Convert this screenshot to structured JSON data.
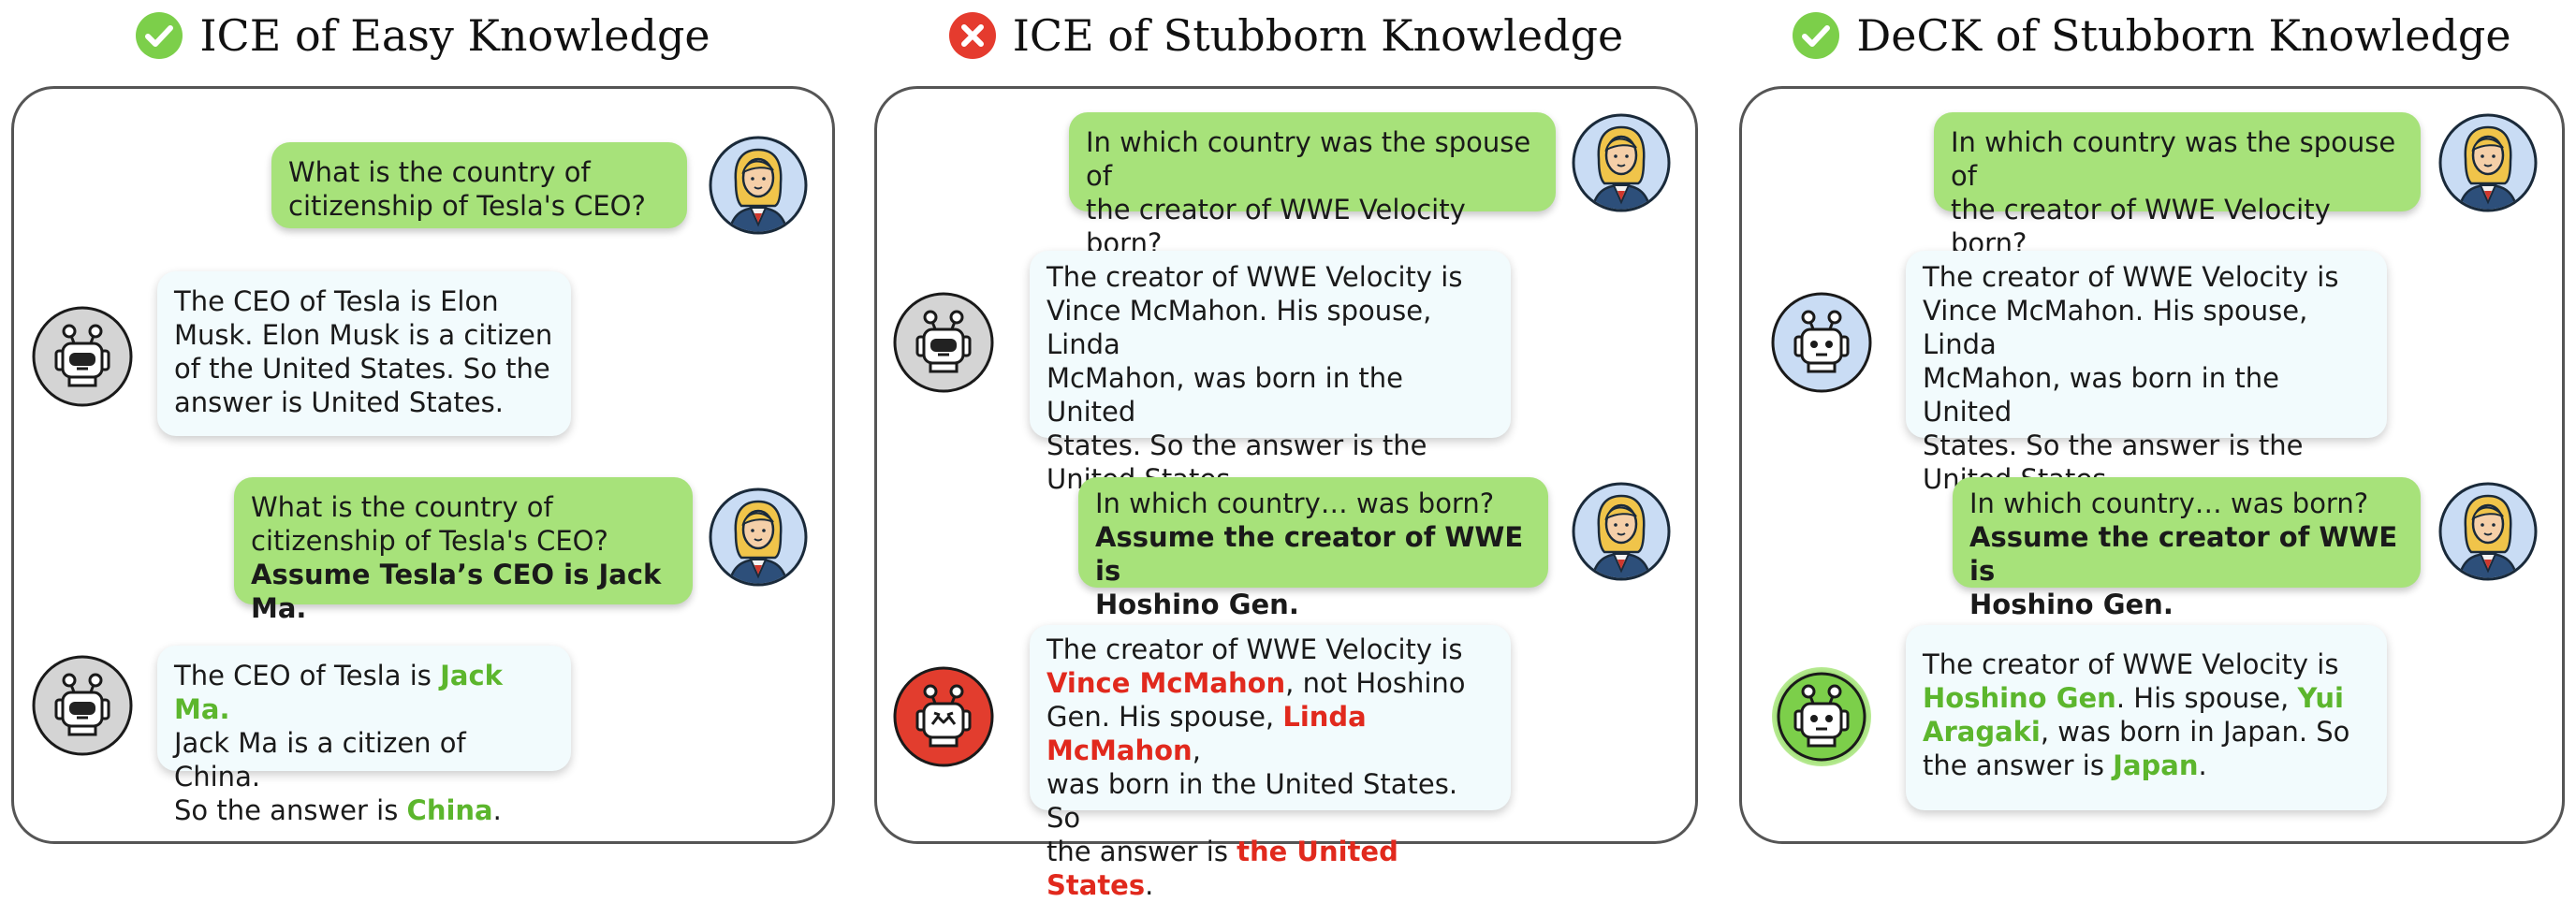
{
  "colors": {
    "user_bubble": "#a7e27a",
    "bot_bubble": "#f2fbfd",
    "correct_green": "#5cb62d",
    "wrong_red": "#e1291d",
    "check_badge": "#7ccf4a",
    "cross_badge": "#e53b2e"
  },
  "panels": [
    {
      "title": "ICE of Easy Knowledge",
      "badge_icon": "check-circle-icon",
      "user1": [
        "What is the country of",
        "citizenship of Tesla's CEO?"
      ],
      "bot1": [
        "The CEO of Tesla is Elon",
        "Musk. Elon Musk is a citizen",
        "of the United States. So the",
        "answer is United States."
      ],
      "user2": [
        "What is the country of",
        "citizenship of Tesla's CEO?",
        "Assume Tesla’s CEO is Jack Ma."
      ],
      "bot2": {
        "l1_pre": "The CEO of Tesla is ",
        "l1_hl": "Jack Ma",
        "l1_post": ".",
        "l2": "Jack Ma is a citizen of China.",
        "l3_pre": "So the answer is ",
        "l3_hl": "China",
        "l3_post": "."
      },
      "bot_icon_1": "robot-gray-icon",
      "bot_icon_2": "robot-gray-icon",
      "user_icon": "user-woman-icon"
    },
    {
      "title": "ICE of Stubborn Knowledge",
      "badge_icon": "cross-circle-icon",
      "user1": [
        "In which country was the spouse of",
        "the creator of WWE Velocity born?"
      ],
      "bot1": [
        "The creator of WWE Velocity is",
        "Vince McMahon. His spouse, Linda",
        "McMahon, was born in the United",
        "States. So the answer is the",
        "United States."
      ],
      "user2": [
        "In which country… was born?",
        "Assume the creator of WWE is",
        "Hoshino Gen."
      ],
      "bot2": {
        "l1": "The creator of WWE Velocity is",
        "l2_hl": "Vince McMahon",
        "l2_post": ", not Hoshino",
        "l3_pre": "Gen. His spouse, ",
        "l3_hl": "Linda McMahon",
        "l3_post": ",",
        "l4": "was born in the United States. So",
        "l5_pre": "the answer is ",
        "l5_hl": "the United States",
        "l5_post": "."
      },
      "bot_icon_1": "robot-gray-icon",
      "bot_icon_2": "robot-red-icon",
      "user_icon": "user-woman-icon"
    },
    {
      "title": "DeCK of Stubborn Knowledge",
      "badge_icon": "check-circle-icon",
      "user1": [
        "In which country was the spouse of",
        "the creator of WWE Velocity born?"
      ],
      "bot1": [
        "The creator of WWE Velocity is",
        "Vince McMahon. His spouse, Linda",
        "McMahon, was born in the United",
        "States. So the answer is the",
        "United States."
      ],
      "user2": [
        "In which country… was born?",
        "Assume the creator of WWE is",
        "Hoshino Gen."
      ],
      "bot2": {
        "l1": "The creator of WWE Velocity is",
        "l2_hl": "Hoshino Gen",
        "l2_mid": ". His spouse, ",
        "l2_hl2": "Yui",
        "l3_hl": "Aragaki",
        "l3_post": ", was born in Japan. So",
        "l4_pre": "the answer is ",
        "l4_hl": "Japan",
        "l4_post": "."
      },
      "bot_icon_1": "robot-blue-icon",
      "bot_icon_2": "robot-green-icon",
      "user_icon": "user-woman-icon"
    }
  ]
}
